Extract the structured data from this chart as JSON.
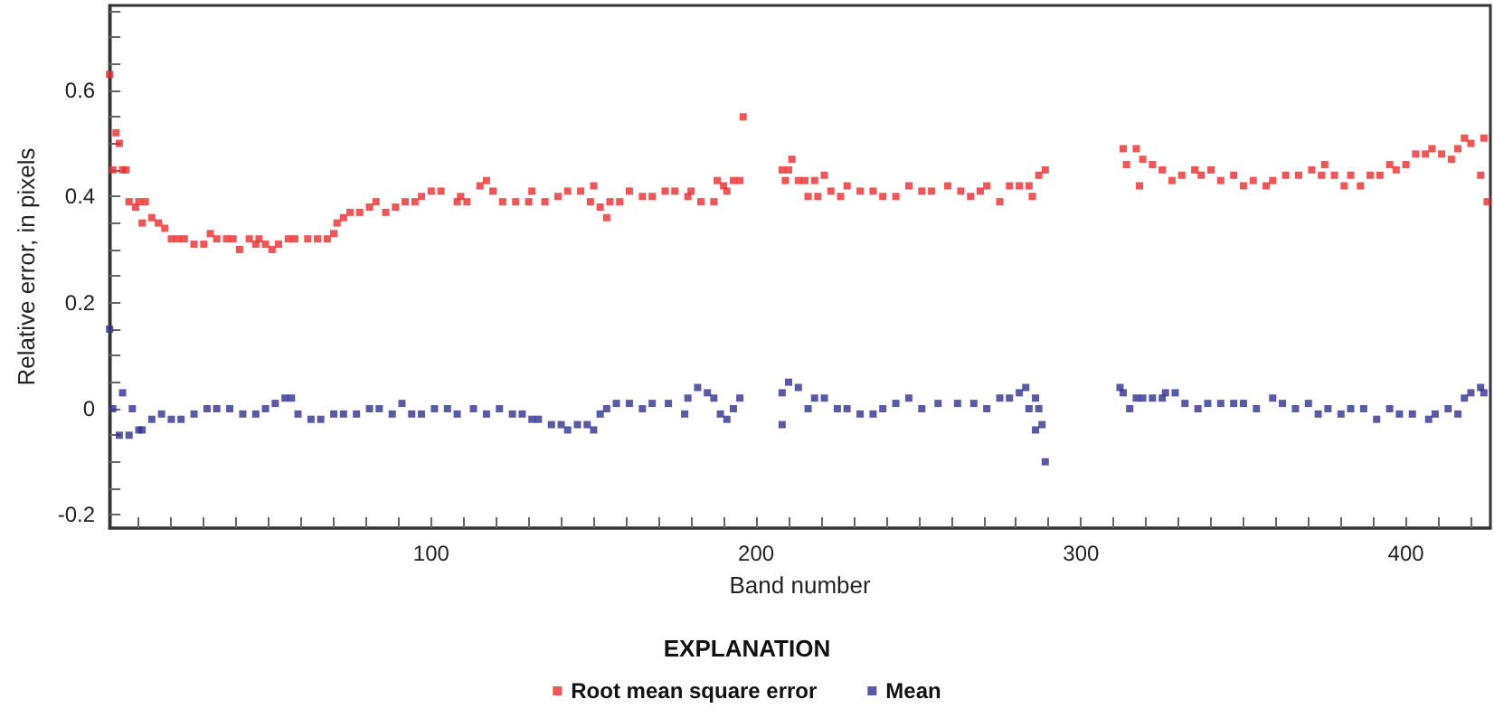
{
  "chart_data": {
    "type": "scatter",
    "xlabel": "Band number",
    "ylabel": "Relative error, in pixels",
    "legend_title": "EXPLANATION",
    "xlim": [
      1,
      426
    ],
    "ylim": [
      -0.225,
      0.76
    ],
    "xticks": [
      {
        "value": 10,
        "label": null
      },
      {
        "value": 20,
        "label": null
      },
      {
        "value": 30,
        "label": null
      },
      {
        "value": 40,
        "label": null
      },
      {
        "value": 50,
        "label": null
      },
      {
        "value": 60,
        "label": null
      },
      {
        "value": 70,
        "label": null
      },
      {
        "value": 80,
        "label": null
      },
      {
        "value": 90,
        "label": null
      },
      100,
      {
        "value": 110,
        "label": null
      },
      {
        "value": 120,
        "label": null
      },
      {
        "value": 130,
        "label": null
      },
      {
        "value": 140,
        "label": null
      },
      {
        "value": 150,
        "label": null
      },
      {
        "value": 160,
        "label": null
      },
      {
        "value": 170,
        "label": null
      },
      {
        "value": 180,
        "label": null
      },
      {
        "value": 190,
        "label": null
      },
      200,
      {
        "value": 210,
        "label": null
      },
      {
        "value": 220,
        "label": null
      },
      {
        "value": 230,
        "label": null
      },
      {
        "value": 240,
        "label": null
      },
      {
        "value": 250,
        "label": null
      },
      {
        "value": 260,
        "label": null
      },
      {
        "value": 270,
        "label": null
      },
      {
        "value": 280,
        "label": null
      },
      {
        "value": 290,
        "label": null
      },
      300,
      {
        "value": 310,
        "label": null
      },
      {
        "value": 320,
        "label": null
      },
      {
        "value": 330,
        "label": null
      },
      {
        "value": 340,
        "label": null
      },
      {
        "value": 350,
        "label": null
      },
      {
        "value": 360,
        "label": null
      },
      {
        "value": 370,
        "label": null
      },
      {
        "value": 380,
        "label": null
      },
      {
        "value": 390,
        "label": null
      },
      400,
      {
        "value": 410,
        "label": null
      },
      {
        "value": 420,
        "label": null
      }
    ],
    "yticks": [
      {
        "value": -0.2,
        "label": "-0.2"
      },
      {
        "value": -0.15,
        "label": null
      },
      {
        "value": -0.1,
        "label": null
      },
      {
        "value": -0.05,
        "label": null
      },
      0,
      {
        "value": 0.05,
        "label": null
      },
      {
        "value": 0.1,
        "label": null
      },
      {
        "value": 0.15,
        "label": null
      },
      0.2,
      {
        "value": 0.25,
        "label": null
      },
      {
        "value": 0.3,
        "label": null
      },
      {
        "value": 0.35,
        "label": null
      },
      0.4,
      {
        "value": 0.45,
        "label": null
      },
      {
        "value": 0.5,
        "label": null
      },
      {
        "value": 0.55,
        "label": null
      },
      0.6,
      {
        "value": 0.65,
        "label": null
      },
      {
        "value": 0.7,
        "label": null
      },
      {
        "value": 0.75,
        "label": null
      }
    ],
    "grid": false,
    "legend": "bottom",
    "marker": "square",
    "series": [
      {
        "name": "Root mean square error",
        "color": "#ee2a2a",
        "x": [
          1,
          2,
          3,
          4,
          5,
          6,
          7,
          9,
          10,
          11,
          12,
          14,
          16,
          18,
          20,
          22,
          24,
          27,
          30,
          32,
          34,
          37,
          39,
          41,
          44,
          46,
          47,
          49,
          51,
          53,
          56,
          58,
          62,
          65,
          68,
          70,
          71,
          73,
          75,
          78,
          81,
          83,
          86,
          89,
          92,
          95,
          97,
          100,
          103,
          108,
          109,
          111,
          115,
          117,
          119,
          122,
          126,
          130,
          131,
          135,
          139,
          142,
          146,
          149,
          150,
          152,
          154,
          155,
          158,
          161,
          165,
          168,
          172,
          175,
          179,
          180,
          183,
          187,
          188,
          190,
          191,
          193,
          195,
          196,
          208,
          209,
          210,
          211,
          213,
          215,
          216,
          218,
          219,
          221,
          223,
          226,
          228,
          232,
          236,
          239,
          243,
          247,
          251,
          254,
          259,
          263,
          266,
          269,
          271,
          275,
          278,
          281,
          284,
          285,
          287,
          289,
          313,
          314,
          317,
          318,
          319,
          322,
          325,
          328,
          331,
          335,
          337,
          340,
          343,
          347,
          350,
          353,
          357,
          359,
          363,
          367,
          371,
          374,
          375,
          378,
          381,
          383,
          386,
          389,
          392,
          395,
          397,
          400,
          403,
          406,
          408,
          411,
          414,
          416,
          418,
          420,
          423,
          424,
          425
        ],
        "values": [
          0.63,
          0.45,
          0.52,
          0.5,
          0.45,
          0.45,
          0.39,
          0.38,
          0.39,
          0.35,
          0.39,
          0.36,
          0.35,
          0.34,
          0.32,
          0.32,
          0.32,
          0.31,
          0.31,
          0.33,
          0.32,
          0.32,
          0.32,
          0.3,
          0.32,
          0.31,
          0.32,
          0.31,
          0.3,
          0.31,
          0.32,
          0.32,
          0.32,
          0.32,
          0.32,
          0.33,
          0.35,
          0.36,
          0.37,
          0.37,
          0.38,
          0.39,
          0.37,
          0.38,
          0.39,
          0.39,
          0.4,
          0.41,
          0.41,
          0.39,
          0.4,
          0.39,
          0.42,
          0.43,
          0.41,
          0.39,
          0.39,
          0.39,
          0.41,
          0.39,
          0.4,
          0.41,
          0.41,
          0.39,
          0.42,
          0.38,
          0.36,
          0.39,
          0.39,
          0.41,
          0.4,
          0.4,
          0.41,
          0.41,
          0.4,
          0.41,
          0.39,
          0.39,
          0.43,
          0.42,
          0.41,
          0.43,
          0.43,
          0.55,
          0.45,
          0.43,
          0.45,
          0.47,
          0.43,
          0.43,
          0.4,
          0.43,
          0.4,
          0.44,
          0.41,
          0.4,
          0.42,
          0.41,
          0.41,
          0.4,
          0.4,
          0.42,
          0.41,
          0.41,
          0.42,
          0.41,
          0.4,
          0.41,
          0.42,
          0.39,
          0.42,
          0.42,
          0.42,
          0.4,
          0.44,
          0.45,
          0.49,
          0.46,
          0.49,
          0.42,
          0.47,
          0.46,
          0.45,
          0.43,
          0.44,
          0.45,
          0.44,
          0.45,
          0.43,
          0.44,
          0.42,
          0.43,
          0.42,
          0.43,
          0.44,
          0.44,
          0.45,
          0.44,
          0.46,
          0.44,
          0.42,
          0.44,
          0.42,
          0.44,
          0.44,
          0.46,
          0.45,
          0.46,
          0.48,
          0.48,
          0.49,
          0.48,
          0.47,
          0.49,
          0.51,
          0.5,
          0.44,
          0.51,
          0.39
        ]
      },
      {
        "name": "Mean",
        "color": "#2e3192",
        "x": [
          1,
          2,
          4,
          5,
          7,
          8,
          10,
          11,
          14,
          17,
          20,
          23,
          27,
          31,
          34,
          38,
          42,
          46,
          49,
          52,
          55,
          57,
          59,
          63,
          66,
          70,
          73,
          77,
          81,
          84,
          88,
          91,
          94,
          97,
          101,
          105,
          108,
          113,
          117,
          121,
          125,
          128,
          131,
          133,
          137,
          140,
          142,
          145,
          148,
          150,
          152,
          154,
          157,
          161,
          165,
          168,
          173,
          178,
          179,
          182,
          185,
          187,
          189,
          191,
          193,
          195,
          208,
          208,
          210,
          213,
          216,
          218,
          221,
          225,
          228,
          232,
          236,
          239,
          243,
          247,
          251,
          256,
          262,
          267,
          271,
          275,
          278,
          281,
          283,
          284,
          286,
          287,
          286,
          288,
          289,
          312,
          313,
          315,
          317,
          319,
          322,
          325,
          326,
          329,
          332,
          336,
          339,
          343,
          347,
          350,
          354,
          359,
          362,
          366,
          370,
          373,
          376,
          380,
          383,
          387,
          391,
          395,
          398,
          402,
          407,
          409,
          413,
          416,
          418,
          420,
          423,
          424
        ],
        "values": [
          0.15,
          0.0,
          -0.05,
          0.03,
          -0.05,
          0.0,
          -0.04,
          -0.04,
          -0.02,
          -0.01,
          -0.02,
          -0.02,
          -0.01,
          0.0,
          0.0,
          0.0,
          -0.01,
          -0.01,
          0.0,
          0.01,
          0.02,
          0.02,
          -0.01,
          -0.02,
          -0.02,
          -0.01,
          -0.01,
          -0.01,
          0.0,
          0.0,
          -0.01,
          0.01,
          -0.01,
          -0.01,
          0.0,
          0.0,
          -0.01,
          0.0,
          -0.01,
          0.0,
          -0.01,
          -0.01,
          -0.02,
          -0.02,
          -0.03,
          -0.03,
          -0.04,
          -0.03,
          -0.03,
          -0.04,
          -0.01,
          0.0,
          0.01,
          0.01,
          0.0,
          0.01,
          0.01,
          -0.01,
          0.02,
          0.04,
          0.03,
          0.02,
          -0.01,
          -0.02,
          0.0,
          0.02,
          0.03,
          -0.03,
          0.05,
          0.04,
          0.0,
          0.02,
          0.02,
          0.0,
          0.0,
          -0.01,
          -0.01,
          0.0,
          0.01,
          0.02,
          0.0,
          0.01,
          0.01,
          0.01,
          0.0,
          0.02,
          0.02,
          0.03,
          0.04,
          0.0,
          0.02,
          0.0,
          -0.04,
          -0.03,
          -0.1,
          0.04,
          0.03,
          0.0,
          0.02,
          0.02,
          0.02,
          0.02,
          0.03,
          0.03,
          0.01,
          0.0,
          0.01,
          0.01,
          0.01,
          0.01,
          0.0,
          0.02,
          0.01,
          0.0,
          0.01,
          -0.01,
          0.0,
          -0.01,
          0.0,
          0.0,
          -0.02,
          0.0,
          -0.01,
          -0.01,
          -0.02,
          -0.01,
          0.0,
          -0.01,
          0.02,
          0.03,
          0.04,
          0.03
        ]
      }
    ]
  }
}
